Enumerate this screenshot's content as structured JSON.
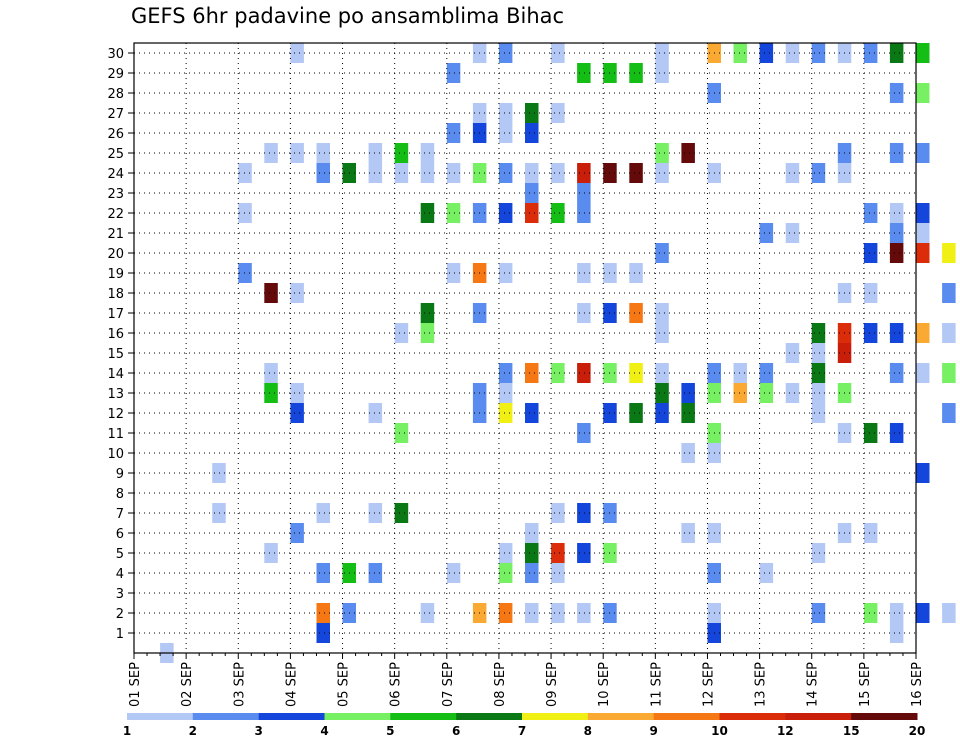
{
  "chart_data": {
    "type": "heatmap",
    "title": "GEFS 6hr padavine po ansamblima Bihac",
    "xlabel": "",
    "ylabel": "",
    "x_tick_labels": [
      "01 SEP",
      "02 SEP",
      "03 SEP",
      "04 SEP",
      "05 SEP",
      "06 SEP",
      "07 SEP",
      "08 SEP",
      "09 SEP",
      "10 SEP",
      "11 SEP",
      "12 SEP",
      "13 SEP",
      "14 SEP",
      "15 SEP",
      "16 SEP"
    ],
    "y_tick_labels": [
      "1",
      "2",
      "3",
      "4",
      "5",
      "6",
      "7",
      "8",
      "9",
      "10",
      "11",
      "12",
      "13",
      "14",
      "15",
      "16",
      "17",
      "18",
      "19",
      "20",
      "21",
      "22",
      "23",
      "24",
      "25",
      "26",
      "27",
      "28",
      "29",
      "30"
    ],
    "x_step_hours": 6,
    "y_range": [
      0,
      30
    ],
    "grid": true,
    "colorbar": {
      "position": "bottom",
      "labels": [
        "1",
        "2",
        "3",
        "4",
        "5",
        "6",
        "7",
        "8",
        "9",
        "10",
        "12",
        "15",
        "20"
      ],
      "colors": [
        "#b4c8f5",
        "#5a8cf0",
        "#1446dc",
        "#78f064",
        "#14be14",
        "#0a7814",
        "#f0f014",
        "#faaa32",
        "#f57814",
        "#dc2d0a",
        "#c81e0a",
        "#640a0a"
      ]
    },
    "cells": [
      [
        7,
        1,
        3
      ],
      [
        22,
        1,
        3
      ],
      [
        48,
        1,
        4
      ],
      [
        29,
        1,
        1
      ],
      [
        7,
        2,
        9
      ],
      [
        8,
        2,
        2
      ],
      [
        11,
        2,
        1
      ],
      [
        13,
        2,
        8
      ],
      [
        14,
        2,
        9
      ],
      [
        15,
        2,
        1
      ],
      [
        16,
        2,
        1
      ],
      [
        17,
        2,
        1
      ],
      [
        18,
        2,
        2
      ],
      [
        22,
        2,
        1
      ],
      [
        26,
        2,
        2
      ],
      [
        28,
        2,
        4
      ],
      [
        29,
        2,
        1
      ],
      [
        30,
        2,
        3
      ],
      [
        31,
        2,
        1
      ],
      [
        7,
        4,
        2
      ],
      [
        8,
        4,
        5
      ],
      [
        9,
        4,
        2
      ],
      [
        12,
        4,
        1
      ],
      [
        14,
        4,
        4
      ],
      [
        15,
        4,
        2
      ],
      [
        16,
        4,
        1
      ],
      [
        22,
        4,
        2
      ],
      [
        24,
        4,
        1
      ],
      [
        5,
        5,
        1
      ],
      [
        14,
        5,
        1
      ],
      [
        15,
        5,
        6
      ],
      [
        16,
        5,
        10
      ],
      [
        17,
        5,
        3
      ],
      [
        18,
        5,
        4
      ],
      [
        26,
        5,
        1
      ],
      [
        6,
        6,
        2
      ],
      [
        15,
        6,
        1
      ],
      [
        21,
        6,
        1
      ],
      [
        22,
        6,
        1
      ],
      [
        27,
        6,
        1
      ],
      [
        28,
        6,
        1
      ],
      [
        3,
        7,
        1
      ],
      [
        7,
        7,
        1
      ],
      [
        9,
        7,
        1
      ],
      [
        10,
        7,
        6
      ],
      [
        16,
        7,
        1
      ],
      [
        17,
        7,
        3
      ],
      [
        18,
        7,
        2
      ],
      [
        3,
        9,
        1
      ],
      [
        30,
        9,
        3
      ],
      [
        21,
        10,
        1
      ],
      [
        22,
        10,
        1
      ],
      [
        10,
        11,
        4
      ],
      [
        17,
        11,
        2
      ],
      [
        22,
        11,
        4
      ],
      [
        27,
        11,
        1
      ],
      [
        28,
        11,
        6
      ],
      [
        29,
        11,
        3
      ],
      [
        6,
        12,
        3
      ],
      [
        13,
        12,
        2
      ],
      [
        14,
        12,
        7
      ],
      [
        15,
        12,
        3
      ],
      [
        9,
        12,
        1
      ],
      [
        18,
        12,
        3
      ],
      [
        19,
        12,
        6
      ],
      [
        20,
        12,
        3
      ],
      [
        21,
        12,
        6
      ],
      [
        26,
        12,
        1
      ],
      [
        31,
        12,
        2
      ],
      [
        32,
        12,
        2
      ],
      [
        5,
        13,
        5
      ],
      [
        6,
        13,
        1
      ],
      [
        13,
        13,
        2
      ],
      [
        14,
        13,
        1
      ],
      [
        20,
        13,
        6
      ],
      [
        21,
        13,
        3
      ],
      [
        22,
        13,
        4
      ],
      [
        23,
        13,
        8
      ],
      [
        24,
        13,
        4
      ],
      [
        25,
        13,
        1
      ],
      [
        26,
        13,
        1
      ],
      [
        27,
        13,
        4
      ],
      [
        5,
        14,
        1
      ],
      [
        14,
        14,
        2
      ],
      [
        15,
        14,
        9
      ],
      [
        16,
        14,
        4
      ],
      [
        17,
        14,
        11
      ],
      [
        18,
        14,
        4
      ],
      [
        19,
        14,
        7
      ],
      [
        20,
        14,
        1
      ],
      [
        22,
        14,
        2
      ],
      [
        23,
        14,
        1
      ],
      [
        24,
        14,
        2
      ],
      [
        26,
        14,
        6
      ],
      [
        29,
        14,
        2
      ],
      [
        30,
        14,
        1
      ],
      [
        31,
        14,
        4
      ],
      [
        25,
        15,
        1
      ],
      [
        26,
        15,
        1
      ],
      [
        27,
        15,
        11
      ],
      [
        10,
        16,
        1
      ],
      [
        11,
        16,
        4
      ],
      [
        20,
        16,
        1
      ],
      [
        26,
        16,
        6
      ],
      [
        27,
        16,
        10
      ],
      [
        28,
        16,
        3
      ],
      [
        29,
        16,
        3
      ],
      [
        30,
        16,
        8
      ],
      [
        31,
        16,
        1
      ],
      [
        11,
        17,
        6
      ],
      [
        13,
        17,
        2
      ],
      [
        17,
        17,
        1
      ],
      [
        18,
        17,
        3
      ],
      [
        19,
        17,
        9
      ],
      [
        20,
        17,
        1
      ],
      [
        5,
        18,
        12
      ],
      [
        6,
        18,
        1
      ],
      [
        27,
        18,
        1
      ],
      [
        28,
        18,
        1
      ],
      [
        31,
        18,
        2
      ],
      [
        4,
        19,
        2
      ],
      [
        12,
        19,
        1
      ],
      [
        13,
        19,
        9
      ],
      [
        14,
        19,
        1
      ],
      [
        17,
        19,
        1
      ],
      [
        18,
        19,
        1
      ],
      [
        19,
        19,
        1
      ],
      [
        20,
        20,
        2
      ],
      [
        28,
        20,
        3
      ],
      [
        29,
        20,
        12
      ],
      [
        30,
        20,
        10
      ],
      [
        31,
        20,
        7
      ],
      [
        32,
        20,
        4
      ],
      [
        24,
        21,
        2
      ],
      [
        25,
        21,
        1
      ],
      [
        29,
        21,
        2
      ],
      [
        30,
        21,
        1
      ],
      [
        4,
        22,
        1
      ],
      [
        11,
        22,
        6
      ],
      [
        12,
        22,
        4
      ],
      [
        13,
        22,
        2
      ],
      [
        14,
        22,
        3
      ],
      [
        15,
        22,
        10
      ],
      [
        16,
        22,
        5
      ],
      [
        17,
        22,
        2
      ],
      [
        28,
        22,
        2
      ],
      [
        29,
        22,
        1
      ],
      [
        30,
        22,
        3
      ],
      [
        15,
        23,
        2
      ],
      [
        17,
        23,
        2
      ],
      [
        4,
        24,
        1
      ],
      [
        14,
        24,
        2
      ],
      [
        15,
        24,
        1
      ],
      [
        16,
        24,
        1
      ],
      [
        13,
        24,
        4
      ],
      [
        12,
        24,
        1
      ],
      [
        11,
        24,
        1
      ],
      [
        10,
        24,
        1
      ],
      [
        9,
        24,
        1
      ],
      [
        8,
        24,
        6
      ],
      [
        7,
        24,
        2
      ],
      [
        17,
        24,
        11
      ],
      [
        18,
        24,
        12
      ],
      [
        19,
        24,
        12
      ],
      [
        20,
        24,
        1
      ],
      [
        22,
        24,
        1
      ],
      [
        25,
        24,
        1
      ],
      [
        26,
        24,
        2
      ],
      [
        27,
        24,
        1
      ],
      [
        5,
        25,
        1
      ],
      [
        6,
        25,
        1
      ],
      [
        7,
        25,
        1
      ],
      [
        9,
        25,
        1
      ],
      [
        10,
        25,
        5
      ],
      [
        11,
        25,
        1
      ],
      [
        20,
        25,
        4
      ],
      [
        21,
        25,
        13
      ],
      [
        27,
        25,
        2
      ],
      [
        29,
        25,
        2
      ],
      [
        30,
        25,
        2
      ],
      [
        12,
        26,
        2
      ],
      [
        13,
        26,
        3
      ],
      [
        14,
        26,
        1
      ],
      [
        15,
        26,
        3
      ],
      [
        13,
        27,
        1
      ],
      [
        14,
        27,
        1
      ],
      [
        15,
        27,
        6
      ],
      [
        16,
        27,
        1
      ],
      [
        22,
        28,
        2
      ],
      [
        29,
        28,
        2
      ],
      [
        30,
        28,
        4
      ],
      [
        12,
        29,
        2
      ],
      [
        17,
        29,
        5
      ],
      [
        18,
        29,
        5
      ],
      [
        19,
        29,
        5
      ],
      [
        20,
        29,
        1
      ],
      [
        6,
        30,
        1
      ],
      [
        13,
        30,
        1
      ],
      [
        14,
        30,
        2
      ],
      [
        16,
        30,
        1
      ],
      [
        20,
        30,
        1
      ],
      [
        22,
        30,
        8
      ],
      [
        23,
        30,
        4
      ],
      [
        24,
        30,
        3
      ],
      [
        25,
        30,
        1
      ],
      [
        26,
        30,
        2
      ],
      [
        27,
        30,
        1
      ],
      [
        28,
        30,
        2
      ],
      [
        29,
        30,
        6
      ],
      [
        30,
        30,
        5
      ],
      [
        32,
        30,
        2
      ],
      [
        1,
        0,
        1
      ]
    ]
  }
}
